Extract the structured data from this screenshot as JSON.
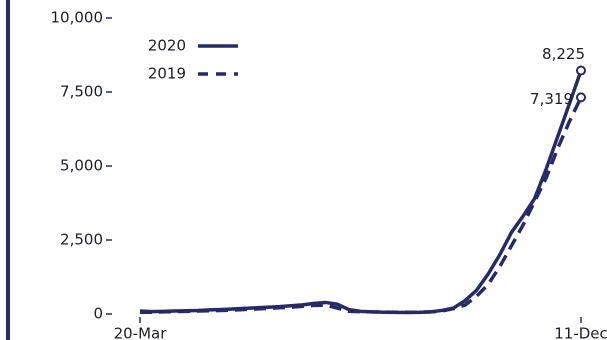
{
  "chart_data": {
    "type": "line",
    "categories": [
      "20-Mar",
      null,
      null,
      null,
      null,
      null,
      null,
      null,
      null,
      null,
      null,
      null,
      null,
      null,
      null,
      null,
      null,
      null,
      null,
      null,
      null,
      null,
      null,
      null,
      null,
      null,
      null,
      null,
      null,
      null,
      null,
      null,
      null,
      null,
      null,
      null,
      null,
      null,
      "11-Dec"
    ],
    "series": [
      {
        "name": "2020",
        "color": "#262b66",
        "dash": false,
        "values": [
          100,
          80,
          90,
          100,
          110,
          120,
          140,
          150,
          170,
          190,
          210,
          230,
          250,
          280,
          310,
          360,
          390,
          330,
          150,
          90,
          70,
          60,
          55,
          50,
          55,
          70,
          120,
          200,
          450,
          800,
          1350,
          2000,
          2750,
          3300,
          3900,
          4900,
          6000,
          7100,
          8225
        ],
        "value_labels": {
          "38": "8,225"
        }
      },
      {
        "name": "2019",
        "color": "#262b66",
        "dash": true,
        "values": [
          60,
          60,
          70,
          80,
          90,
          100,
          110,
          120,
          130,
          150,
          170,
          190,
          210,
          230,
          260,
          290,
          300,
          200,
          90,
          80,
          70,
          65,
          60,
          60,
          60,
          70,
          100,
          180,
          300,
          600,
          1000,
          1600,
          2300,
          3000,
          3800,
          4600,
          5600,
          6500,
          7319
        ],
        "value_labels": {
          "38": "7,319"
        }
      }
    ],
    "ylim": [
      0,
      10000
    ],
    "yticks": [
      0,
      {
        "value": 2500,
        "label": "2,500"
      },
      {
        "value": 5000,
        "label": "5,000"
      },
      {
        "value": 7500,
        "label": "7,500"
      },
      {
        "value": 10000,
        "label": "10,000"
      }
    ],
    "legend": "upper left"
  }
}
